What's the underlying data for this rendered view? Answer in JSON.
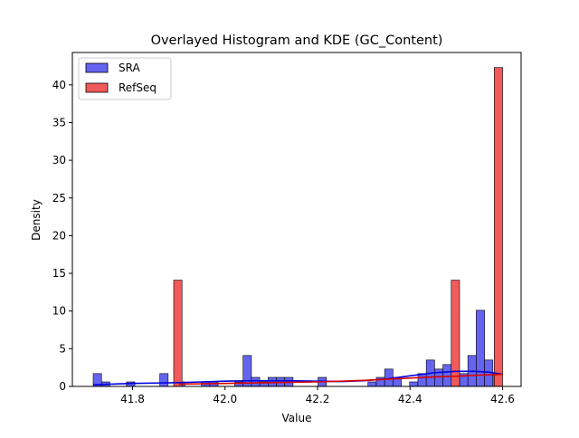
{
  "chart_data": {
    "type": "bar",
    "title": "Overlayed Histogram and KDE (GC_Content)",
    "xlabel": "Value",
    "ylabel": "Density",
    "xlim": [
      41.67,
      42.64
    ],
    "ylim": [
      0,
      44.3
    ],
    "xticks": [
      41.8,
      42.0,
      42.2,
      42.4,
      42.6
    ],
    "xtick_labels": [
      "41.8",
      "42.0",
      "42.2",
      "42.4",
      "42.6"
    ],
    "yticks": [
      0,
      5,
      10,
      15,
      20,
      25,
      30,
      35,
      40
    ],
    "ytick_labels": [
      "0",
      "5",
      "10",
      "15",
      "20",
      "25",
      "30",
      "35",
      "40"
    ],
    "grid": false,
    "legend": {
      "position": "upper-left",
      "entries": [
        "SRA",
        "RefSeq"
      ]
    },
    "series": [
      {
        "name": "SRA",
        "color": "#6464f0",
        "bins": [
          {
            "x0": 41.715,
            "x1": 41.733,
            "y": 1.7
          },
          {
            "x0": 41.733,
            "x1": 41.751,
            "y": 0.6
          },
          {
            "x0": 41.787,
            "x1": 41.805,
            "y": 0.6
          },
          {
            "x0": 41.859,
            "x1": 41.877,
            "y": 1.7
          },
          {
            "x0": 41.895,
            "x1": 41.913,
            "y": 0.6
          },
          {
            "x0": 41.949,
            "x1": 41.967,
            "y": 0.6
          },
          {
            "x0": 41.967,
            "x1": 41.985,
            "y": 0.6
          },
          {
            "x0": 42.021,
            "x1": 42.039,
            "y": 0.6
          },
          {
            "x0": 42.039,
            "x1": 42.057,
            "y": 4.1
          },
          {
            "x0": 42.057,
            "x1": 42.075,
            "y": 1.2
          },
          {
            "x0": 42.075,
            "x1": 42.093,
            "y": 0.6
          },
          {
            "x0": 42.093,
            "x1": 42.111,
            "y": 1.2
          },
          {
            "x0": 42.111,
            "x1": 42.129,
            "y": 1.2
          },
          {
            "x0": 42.129,
            "x1": 42.147,
            "y": 1.2
          },
          {
            "x0": 42.201,
            "x1": 42.219,
            "y": 1.2
          },
          {
            "x0": 42.309,
            "x1": 42.327,
            "y": 0.6
          },
          {
            "x0": 42.327,
            "x1": 42.345,
            "y": 1.2
          },
          {
            "x0": 42.345,
            "x1": 42.363,
            "y": 2.3
          },
          {
            "x0": 42.363,
            "x1": 42.381,
            "y": 1.2
          },
          {
            "x0": 42.399,
            "x1": 42.417,
            "y": 0.6
          },
          {
            "x0": 42.417,
            "x1": 42.435,
            "y": 1.7
          },
          {
            "x0": 42.435,
            "x1": 42.453,
            "y": 3.5
          },
          {
            "x0": 42.453,
            "x1": 42.471,
            "y": 2.3
          },
          {
            "x0": 42.471,
            "x1": 42.489,
            "y": 2.9
          },
          {
            "x0": 42.489,
            "x1": 42.507,
            "y": 0.6
          },
          {
            "x0": 42.507,
            "x1": 42.525,
            "y": 1.7
          },
          {
            "x0": 42.525,
            "x1": 42.543,
            "y": 4.1
          },
          {
            "x0": 42.543,
            "x1": 42.561,
            "y": 10.1
          },
          {
            "x0": 42.561,
            "x1": 42.579,
            "y": 3.5
          },
          {
            "x0": 42.579,
            "x1": 42.597,
            "y": 1.7
          }
        ],
        "kde": {
          "x": [
            41.715,
            41.75,
            41.8,
            41.85,
            41.9,
            41.95,
            42.0,
            42.05,
            42.1,
            42.15,
            42.2,
            42.25,
            42.3,
            42.35,
            42.4,
            42.45,
            42.5,
            42.54,
            42.57,
            42.6
          ],
          "y": [
            0.2,
            0.3,
            0.4,
            0.45,
            0.5,
            0.6,
            0.7,
            0.75,
            0.75,
            0.75,
            0.7,
            0.65,
            0.75,
            1.0,
            1.4,
            1.8,
            2.0,
            2.0,
            1.9,
            1.6
          ]
        }
      },
      {
        "name": "RefSeq",
        "color": "#f05a5a",
        "bins": [
          {
            "x0": 41.889,
            "x1": 41.907,
            "y": 14.1
          },
          {
            "x0": 41.907,
            "x1": 42.489,
            "y": 0
          },
          {
            "x0": 42.489,
            "x1": 42.507,
            "y": 14.1
          },
          {
            "x0": 42.582,
            "x1": 42.6,
            "y": 42.3
          }
        ],
        "kde": {
          "x": [
            41.9,
            42.0,
            42.1,
            42.2,
            42.3,
            42.4,
            42.45,
            42.5,
            42.55,
            42.6
          ],
          "y": [
            0.3,
            0.4,
            0.5,
            0.6,
            0.8,
            1.1,
            1.25,
            1.35,
            1.5,
            1.6
          ]
        }
      }
    ]
  }
}
